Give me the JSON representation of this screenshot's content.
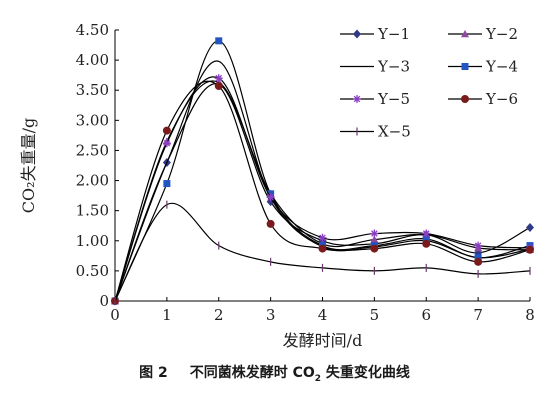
{
  "chart_data": {
    "type": "line",
    "title": "",
    "xlabel": "发酵时间/d",
    "ylabel": "CO₂失重量/g",
    "x": [
      0,
      1,
      2,
      3,
      4,
      5,
      6,
      7,
      8
    ],
    "xlim": [
      0,
      8
    ],
    "ylim": [
      0,
      4.5
    ],
    "x_ticks": [
      "0",
      "1",
      "2",
      "3",
      "4",
      "5",
      "6",
      "7",
      "8"
    ],
    "y_ticks": [
      "0",
      "0.50",
      "1.00",
      "1.50",
      "2.00",
      "2.50",
      "3.00",
      "3.50",
      "4.00",
      "4.50"
    ],
    "grid": false,
    "legend_position": "top-right",
    "series": [
      {
        "name": "Y−1",
        "color": "#2e3a87",
        "marker": "diamond",
        "values": [
          0,
          2.3,
          3.6,
          1.65,
          1.0,
          0.95,
          1.1,
          0.8,
          1.22
        ]
      },
      {
        "name": "Y−2",
        "color": "#8b4a9c",
        "marker": "triangle",
        "values": [
          0,
          2.65,
          3.63,
          1.78,
          0.95,
          1.02,
          1.1,
          0.88,
          0.85
        ]
      },
      {
        "name": "Y−3",
        "color": "#d62728",
        "marker": "none",
        "values": [
          0,
          2.3,
          3.98,
          1.72,
          0.9,
          0.9,
          1.0,
          0.72,
          0.86
        ]
      },
      {
        "name": "Y−4",
        "color": "#2255c4",
        "marker": "square",
        "values": [
          0,
          1.95,
          4.32,
          1.78,
          0.92,
          0.92,
          1.03,
          0.72,
          0.92
        ]
      },
      {
        "name": "Y−5",
        "color": "#8a3fc2",
        "marker": "asterisk",
        "values": [
          0,
          2.62,
          3.7,
          1.72,
          1.05,
          1.12,
          1.12,
          0.92,
          0.88
        ]
      },
      {
        "name": "Y−6",
        "color": "#7a1a1a",
        "marker": "circle",
        "values": [
          0,
          2.83,
          3.57,
          1.28,
          0.87,
          0.87,
          0.95,
          0.65,
          0.85
        ]
      },
      {
        "name": "X−5",
        "color": "#6b3a6b",
        "marker": "plus",
        "values": [
          0,
          1.6,
          0.92,
          0.65,
          0.55,
          0.5,
          0.55,
          0.45,
          0.5
        ]
      }
    ]
  },
  "caption": {
    "figure_label": "图 2",
    "text_before": "不同菌株发酵时 CO",
    "subscript": "2",
    "text_after": " 失重变化曲线"
  }
}
